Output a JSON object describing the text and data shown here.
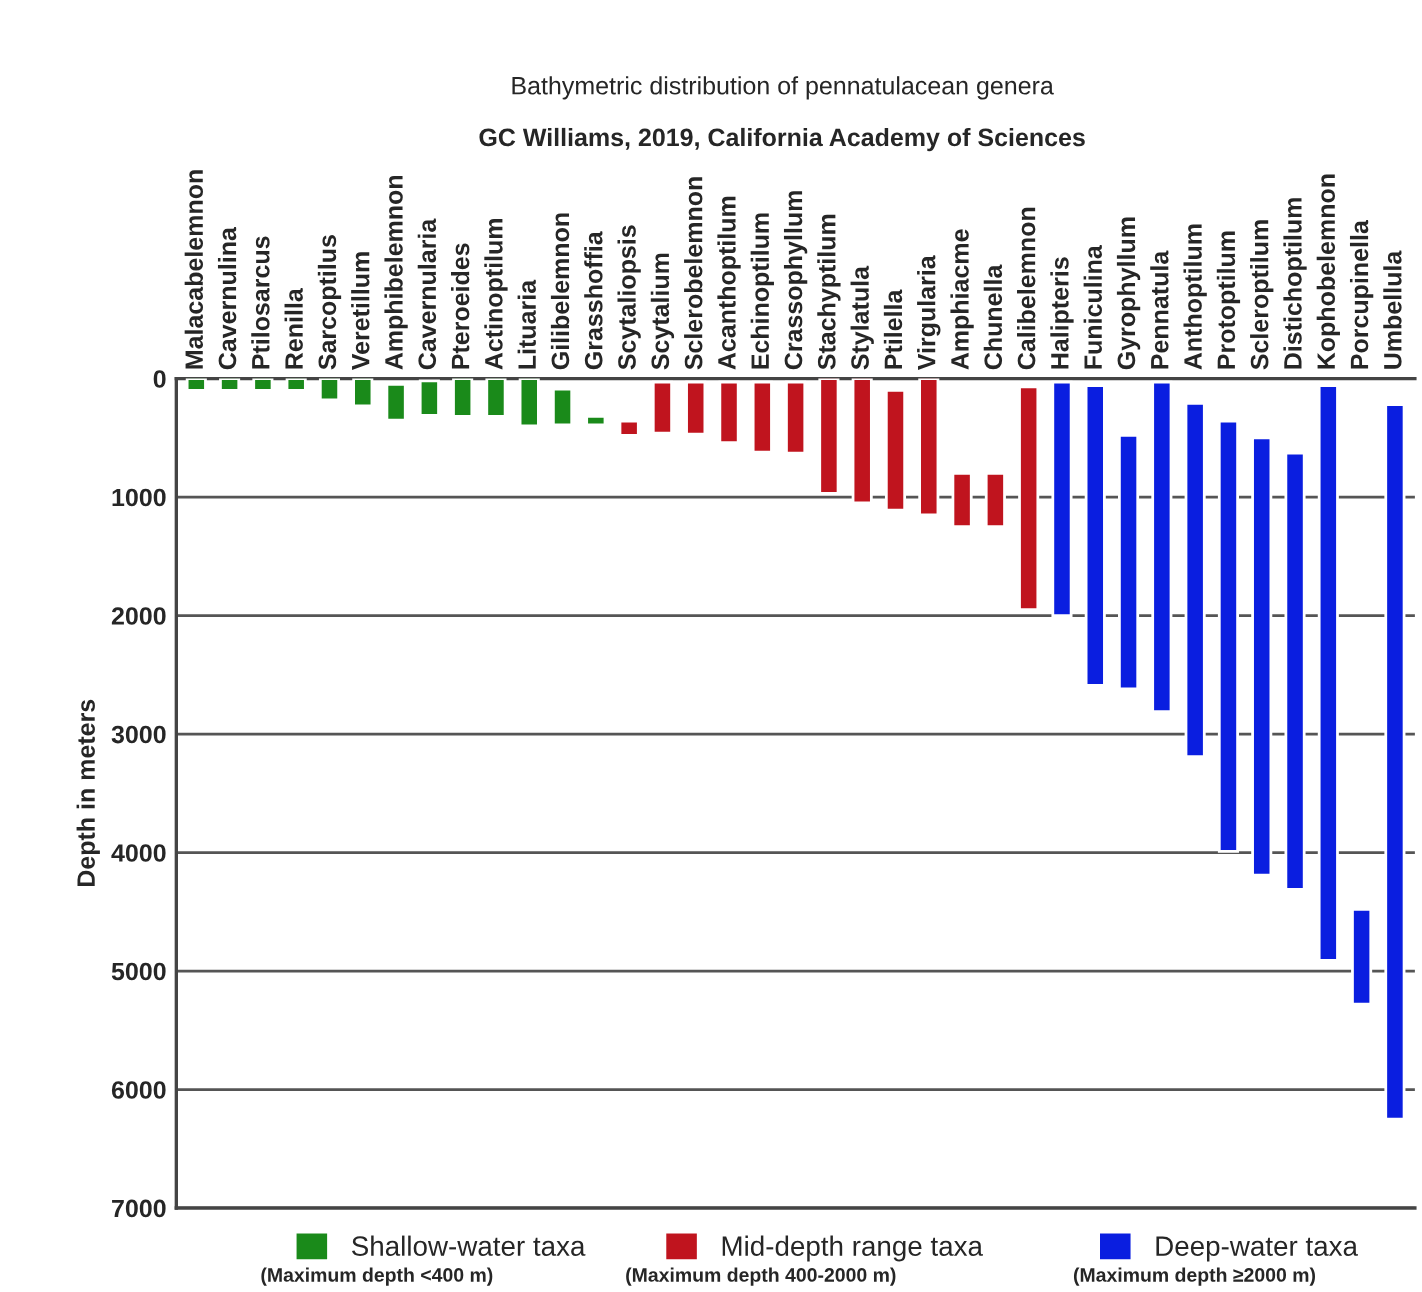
{
  "chart_data": {
    "type": "bar",
    "title": "Bathymetric distribution of pennatulacean genera",
    "subtitle": "GC Williams, 2019, California Academy of Sciences",
    "ylabel": "Depth in meters",
    "categories": [
      "Malacabelemnon",
      "Cavernulina",
      "Ptilosarcus",
      "Renilla",
      "Sarcoptilus",
      "Veretillum",
      "Amphibelemnon",
      "Cavernularia",
      "Pteroeides",
      "Actinoptilum",
      "Lituaria",
      "Gilibelemnon",
      "Grasshoffia",
      "Scytaliopsis",
      "Scytalium",
      "Sclerobelemnon",
      "Acanthoptilum",
      "Echinoptilum",
      "Crassophyllum",
      "Stachyptilum",
      "Stylatula",
      "Ptilella",
      "Virgularia",
      "Amphiacme",
      "Chunella",
      "Calibelemnon",
      "Halipteris",
      "Funiculina",
      "Gyrophyllum",
      "Pennatula",
      "Anthoptilum",
      "Protoptilum",
      "Scleroptilum",
      "Distichoptilum",
      "Kophobelemnon",
      "Porcupinella",
      "Umbellula"
    ],
    "series": [
      {
        "name": "Shallow-water taxa",
        "color": "#1a8a1a",
        "values": [
          100,
          100,
          100,
          100,
          180,
          230,
          300,
          290,
          320,
          320,
          400,
          300,
          70,
          null,
          null,
          null,
          null,
          null,
          null,
          null,
          null,
          null,
          null,
          null,
          null,
          null,
          null,
          null,
          null,
          null,
          null,
          null,
          null,
          null,
          null,
          null,
          null
        ],
        "base": [
          0,
          0,
          0,
          0,
          0,
          0,
          50,
          20,
          0,
          0,
          0,
          90,
          320,
          null,
          null,
          null,
          null,
          null,
          null,
          null,
          null,
          null,
          null,
          null,
          null,
          null,
          null,
          null,
          null,
          null,
          null,
          null,
          null,
          null,
          null,
          null,
          null
        ]
      },
      {
        "name": "Mid-depth range taxa",
        "color": "#c0141e",
        "values": [
          null,
          null,
          null,
          null,
          null,
          null,
          null,
          null,
          null,
          null,
          null,
          null,
          null,
          120,
          430,
          440,
          510,
          590,
          600,
          970,
          1050,
          1010,
          1150,
          450,
          450,
          1880,
          null,
          null,
          null,
          null,
          null,
          null,
          null,
          null,
          null,
          null,
          null
        ],
        "base": [
          null,
          null,
          null,
          null,
          null,
          null,
          null,
          null,
          null,
          null,
          null,
          null,
          null,
          360,
          30,
          30,
          30,
          30,
          30,
          0,
          0,
          100,
          0,
          800,
          800,
          70,
          null,
          null,
          null,
          null,
          null,
          null,
          null,
          null,
          null,
          null,
          null
        ]
      },
      {
        "name": "Deep-water taxa",
        "color": "#0a1ee0",
        "values": [
          null,
          null,
          null,
          null,
          null,
          null,
          null,
          null,
          null,
          null,
          null,
          null,
          null,
          null,
          null,
          null,
          null,
          null,
          null,
          null,
          null,
          null,
          null,
          null,
          null,
          null,
          1970,
          2530,
          2140,
          2780,
          2980,
          3630,
          3690,
          3680,
          4850,
          800,
          6030
        ],
        "base": [
          null,
          null,
          null,
          null,
          null,
          null,
          null,
          null,
          null,
          null,
          null,
          null,
          null,
          null,
          null,
          null,
          null,
          null,
          null,
          null,
          null,
          null,
          null,
          null,
          null,
          null,
          30,
          60,
          480,
          30,
          210,
          360,
          500,
          630,
          60,
          4480,
          220
        ]
      }
    ],
    "ylim": [
      7000,
      0
    ],
    "yticks": [
      0,
      1000,
      2000,
      3000,
      4000,
      5000,
      6000,
      7000
    ],
    "grid": "y",
    "legend": "bottom",
    "annotations": [
      "(Maximum depth <400 m)",
      "(Maximum depth 400-2000 m)",
      "(Maximum depth ≥2000 m)"
    ]
  }
}
